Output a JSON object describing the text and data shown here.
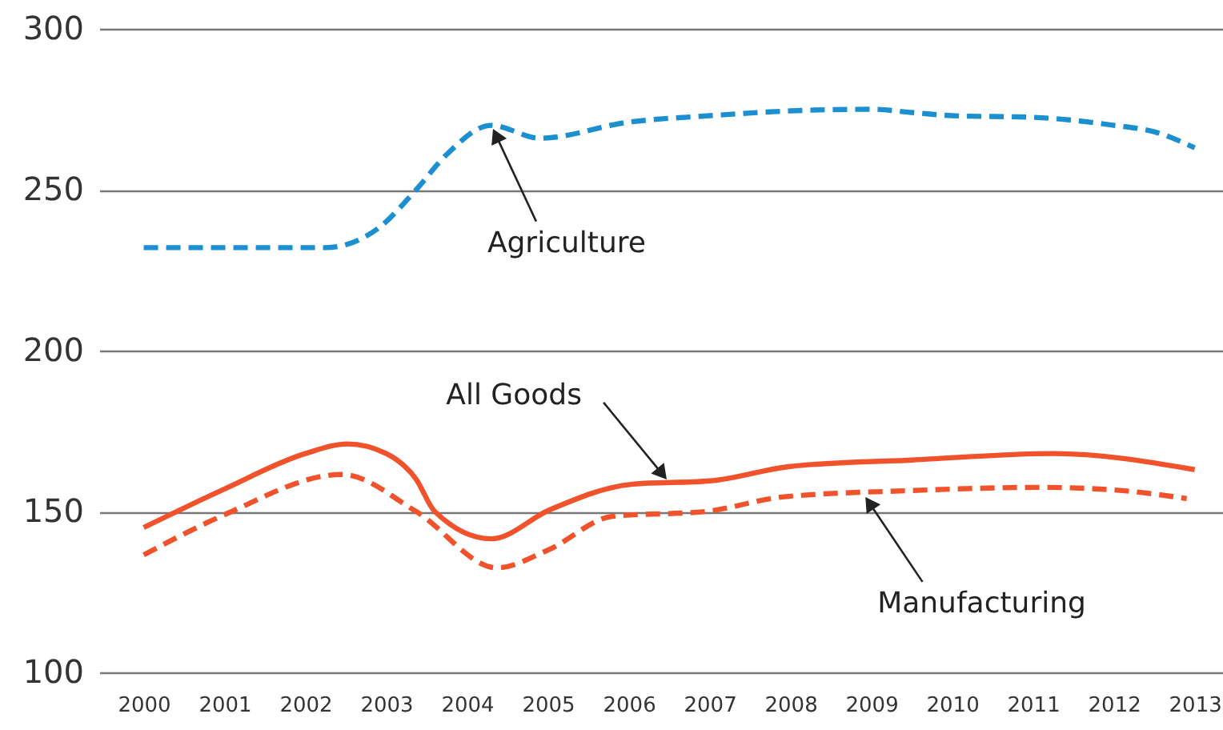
{
  "chart_data": {
    "type": "line",
    "xlim": [
      1999.45,
      2013.35
    ],
    "ylim": [
      100,
      300
    ],
    "xticks": [
      2000,
      2001,
      2002,
      2003,
      2004,
      2005,
      2006,
      2007,
      2008,
      2009,
      2010,
      2011,
      2012,
      2013
    ],
    "yticks": [
      100,
      150,
      200,
      250,
      300
    ],
    "grid": "y",
    "series": [
      {
        "color": "#1b8fd0",
        "line_style": "dashed",
        "x": [
          2000,
          2001,
          2002.25,
          2002.9,
          2003.37,
          2003.75,
          2004.3,
          2004.9,
          2006,
          2007,
          2008,
          2009,
          2009.5,
          2010,
          2011,
          2012,
          2012.5,
          2013
        ],
        "values": [
          232,
          232,
          232,
          238,
          250,
          261,
          270,
          266,
          271,
          273,
          274.5,
          275,
          274,
          273,
          272.5,
          270,
          268,
          263
        ]
      },
      {
        "color": "#f0532b",
        "line_style": "solid",
        "x": [
          2000,
          2001,
          2002,
          2002.52,
          2003,
          2003.37,
          2003.6,
          2004.3,
          2005.02,
          2006.05,
          2007,
          2008,
          2009.5,
          2011.25,
          2013
        ],
        "values": [
          145,
          157,
          168,
          171,
          168,
          160,
          150,
          141.5,
          150.5,
          158.5,
          159.5,
          164,
          166,
          168,
          163
        ]
      },
      {
        "color": "#f0532b",
        "line_style": "dashed",
        "x": [
          2000,
          2001,
          2002.45,
          2003.37,
          2004.37,
          2005,
          2005.8,
          2006.95,
          2007.9,
          2009.5,
          2011.1,
          2012.1,
          2012.9
        ],
        "values": [
          136.5,
          149,
          161.5,
          150,
          132.5,
          138,
          148.5,
          150,
          154.5,
          156.5,
          157.5,
          156.5,
          154
        ]
      }
    ],
    "annotations": [
      {
        "text": "Agriculture",
        "x": 2004.3,
        "y": 270
      },
      {
        "text": "All Goods",
        "x": 2006.5,
        "y": 159
      },
      {
        "text": "Manufacturing",
        "x": 2008.9,
        "y": 155.5
      }
    ]
  }
}
